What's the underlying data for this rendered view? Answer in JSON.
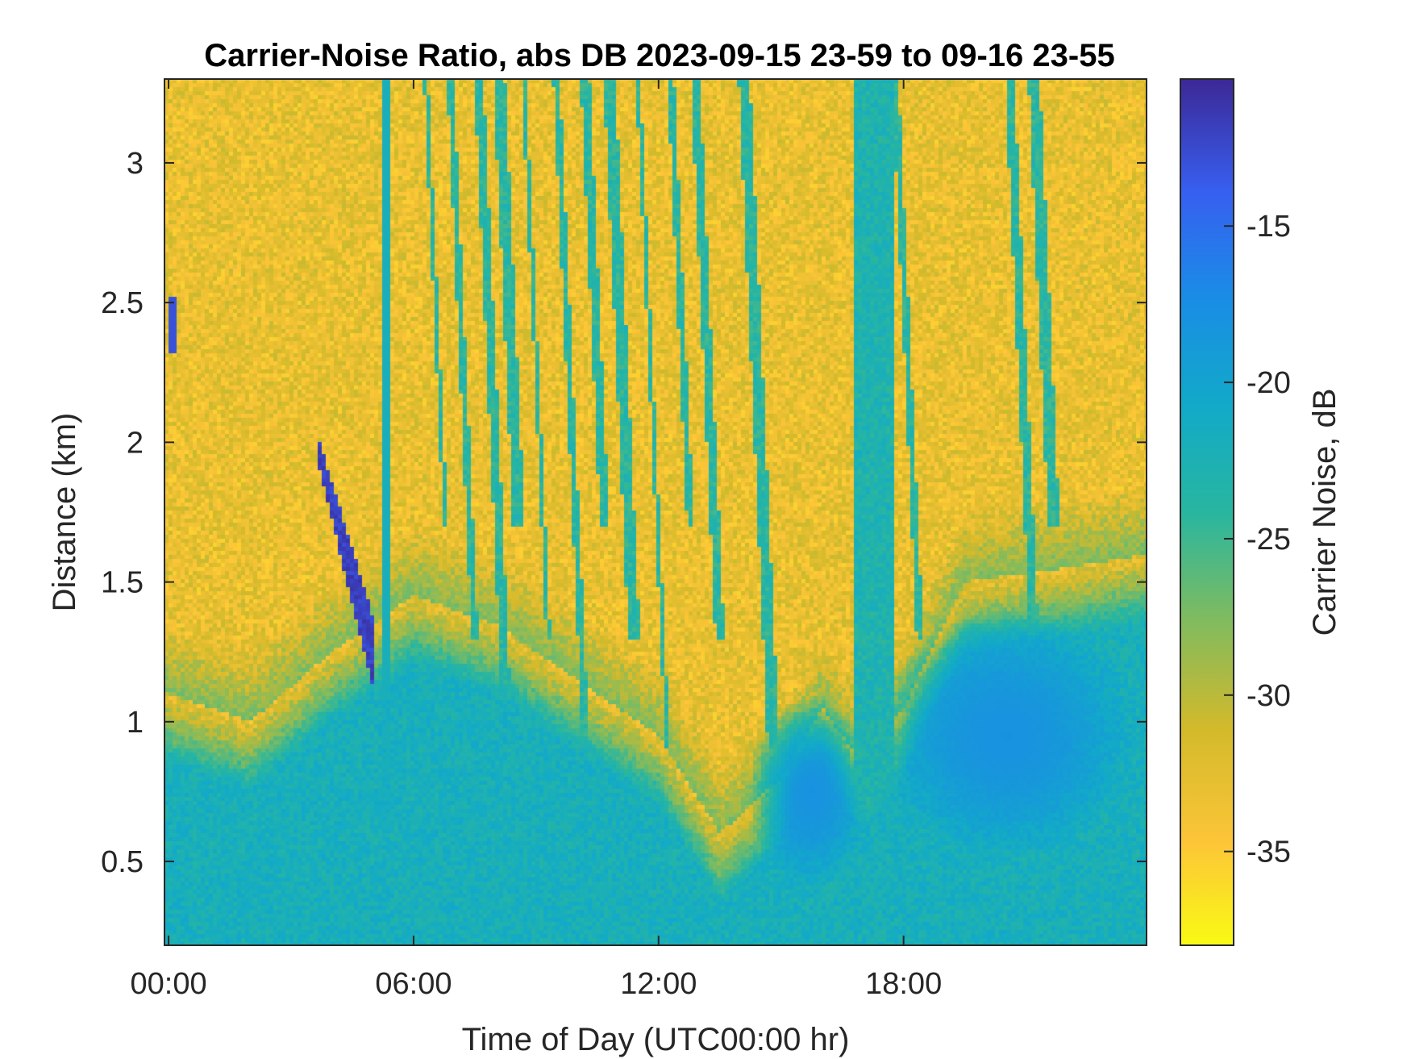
{
  "chart_data": {
    "type": "heatmap",
    "title": "Carrier-Noise Ratio, abs DB 2023-09-15 23-59 to 09-16 23-55",
    "xlabel": "Time of Day (UTC00:00 hr)",
    "ylabel": "Distance (km)",
    "colorbar_label": "Carrier Noise, dB",
    "colormap": "parula (reversed)",
    "x_ticks": [
      "00:00",
      "06:00",
      "12:00",
      "18:00"
    ],
    "x_tick_hours": [
      0,
      6,
      12,
      18
    ],
    "xlim_hours": [
      -0.1,
      23.95
    ],
    "y_ticks": [
      "0.5",
      "1",
      "1.5",
      "2",
      "2.5",
      "3"
    ],
    "y_tick_values": [
      0.5,
      1,
      1.5,
      2,
      2.5,
      3
    ],
    "ylim_km": [
      0.2,
      3.3
    ],
    "colorbar_ticks": [
      "-15",
      "-20",
      "-25",
      "-30",
      "-35"
    ],
    "colorbar_tick_values": [
      -15,
      -20,
      -25,
      -30,
      -35
    ],
    "clim_db": [
      -38,
      -10.3
    ],
    "background_level_db": -33,
    "features": [
      {
        "name": "near-range boundary layer",
        "t_start": 0,
        "t_end": 24,
        "height_km_profile": [
          [
            0,
            1.1
          ],
          [
            2,
            1.0
          ],
          [
            4,
            1.25
          ],
          [
            6,
            1.45
          ],
          [
            8,
            1.35
          ],
          [
            10,
            1.15
          ],
          [
            12,
            0.95
          ],
          [
            13.5,
            0.6
          ],
          [
            15,
            0.8
          ],
          [
            16,
            1.05
          ],
          [
            17,
            0.85
          ],
          [
            18,
            1.05
          ],
          [
            19.5,
            1.5
          ],
          [
            22,
            1.55
          ],
          [
            24,
            1.6
          ]
        ],
        "level_db": -22
      },
      {
        "name": "afternoon enhanced layer",
        "t_center": 15.7,
        "height_center_km": 0.75,
        "level_db": -18
      },
      {
        "name": "evening enhanced layer",
        "t_center": 20.5,
        "height_center_km": 0.95,
        "level_db": -18
      },
      {
        "name": "strong echo plume",
        "t_start": 3.7,
        "t_end": 5.0,
        "height_start_km": 1.95,
        "height_end_km": 1.25,
        "level_db": -12
      },
      {
        "name": "early echo streak",
        "t_center": 0.1,
        "height_center_km": 2.42,
        "level_db": -13
      },
      {
        "name": "vertical streak ~05:20",
        "t_center": 5.35,
        "level_db": -22
      },
      {
        "name": "vertical streak ~17:20",
        "t_center": 17.3,
        "level_db": -23
      },
      {
        "name": "upper streaks 06:00-13:00",
        "t_start": 6,
        "t_end": 13,
        "level_db": -24
      }
    ]
  }
}
